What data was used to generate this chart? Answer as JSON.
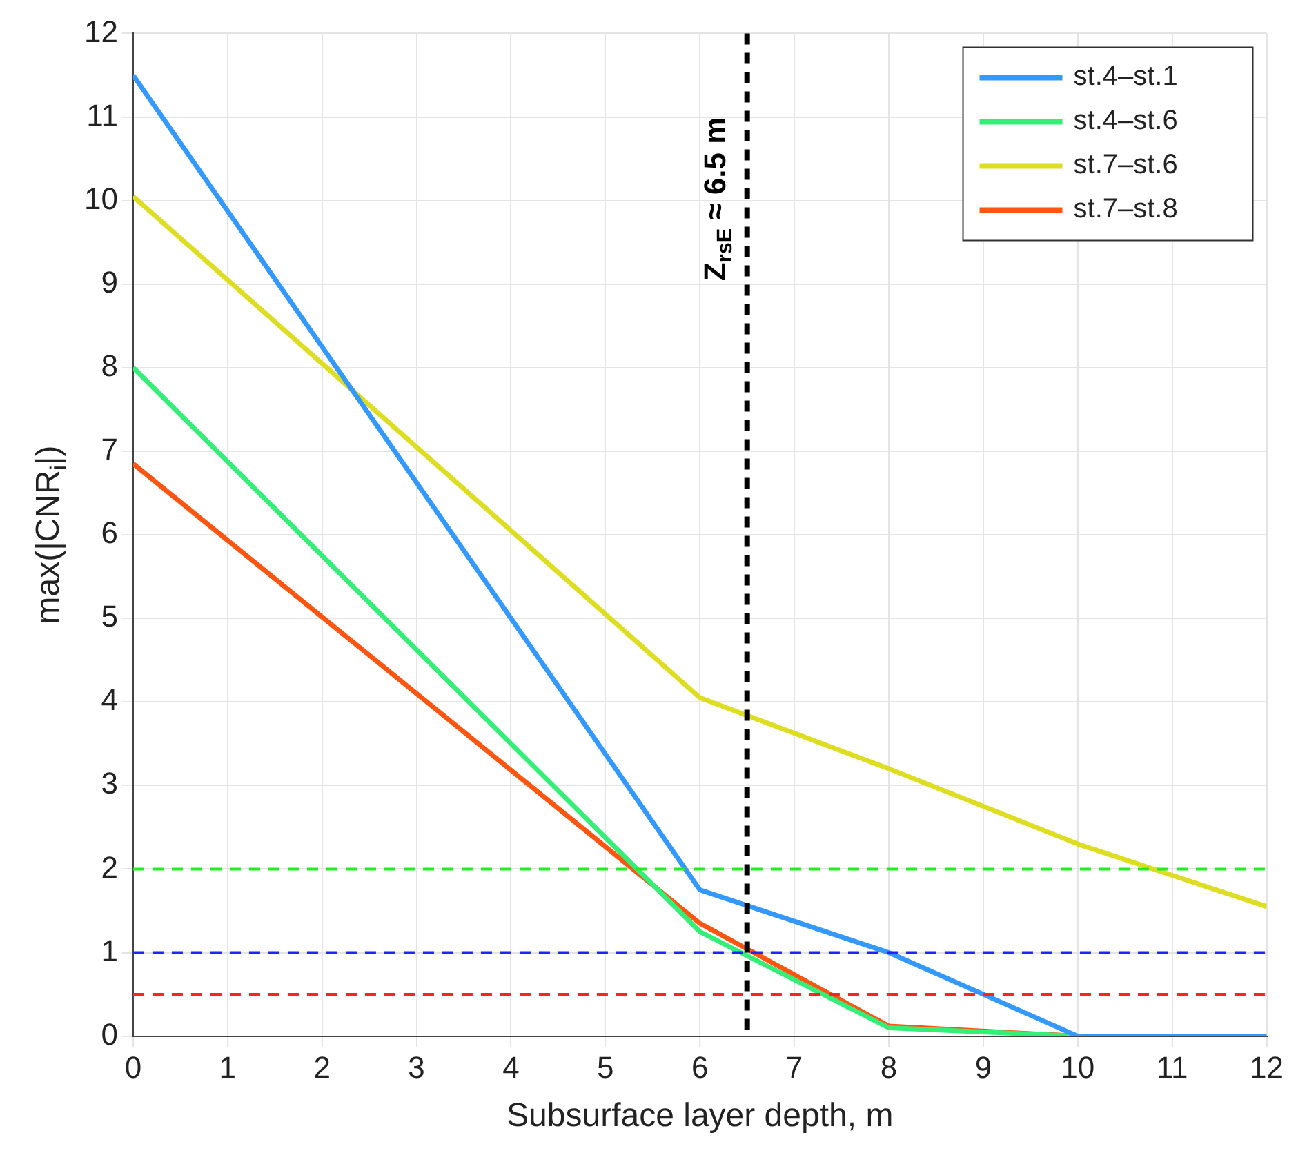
{
  "chart_data": {
    "type": "line",
    "xlabel": "Subsurface layer depth, m",
    "ylabel": "max(|CNR$_{i}$|)",
    "x": [
      0,
      6,
      8,
      10,
      12
    ],
    "series": [
      {
        "name": "st.4–st.1",
        "color": "#3399ff",
        "values": [
          11.5,
          1.75,
          1.0,
          0,
          0
        ]
      },
      {
        "name": "st.4–st.6",
        "color": "#33ee77",
        "values": [
          8,
          1.25,
          0.1,
          0,
          0
        ]
      },
      {
        "name": "st.7–st.6",
        "color": "#dddd22",
        "values": [
          10.05,
          4.05,
          3.2,
          2.3,
          1.55
        ]
      },
      {
        "name": "st.7–st.8",
        "color": "#ff5511",
        "values": [
          6.85,
          1.35,
          0.12,
          0,
          0
        ]
      }
    ],
    "xlim": [
      0,
      12
    ],
    "xticks": [
      0,
      1,
      2,
      3,
      4,
      5,
      6,
      7,
      8,
      9,
      10,
      11,
      12
    ],
    "ylim": [
      0,
      12
    ],
    "yticks": [
      0,
      1,
      2,
      3,
      4,
      5,
      6,
      7,
      8,
      9,
      10,
      11,
      12
    ],
    "ref_lines": [
      {
        "axis": "y",
        "value": 2,
        "color": "#22ee22",
        "line_style": "dashed"
      },
      {
        "axis": "y",
        "value": 1,
        "color": "#2222ff",
        "line_style": "dashed"
      },
      {
        "axis": "y",
        "value": 0.5,
        "color": "#ff2222",
        "line_style": "dashed"
      },
      {
        "axis": "x",
        "value": 6.5,
        "color": "#000000",
        "line_style": "dashed",
        "label": "Z$_{rsE}$ ≈ 6.5 m"
      }
    ],
    "grid": true,
    "legend": "top right",
    "marker": "none",
    "line_style": "solid"
  }
}
